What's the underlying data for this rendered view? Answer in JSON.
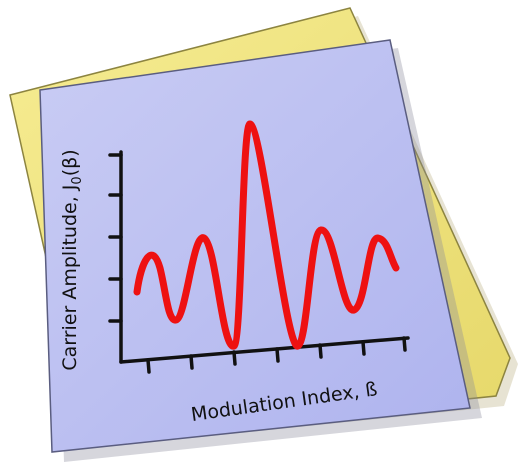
{
  "icon": {
    "y_label": {
      "text": "Carrier Amplitude, J",
      "subscript": "0",
      "suffix": "(β)"
    },
    "x_label": "Modulation Index, ß"
  }
}
